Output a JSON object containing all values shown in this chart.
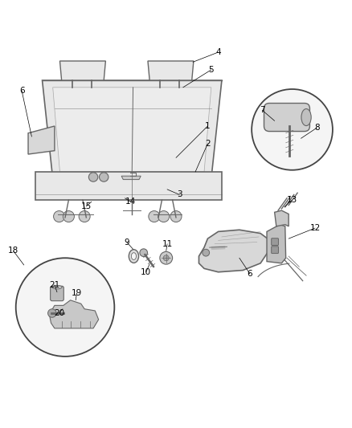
{
  "bg_color": "#ffffff",
  "line_color": "#555555",
  "label_color": "#000000",
  "fig_width": 4.38,
  "fig_height": 5.33,
  "dpi": 100,
  "seat_color": "#e8e8e8",
  "seat_line": "#666666",
  "circle_color": "#f5f5f5",
  "circle_line": "#444444"
}
